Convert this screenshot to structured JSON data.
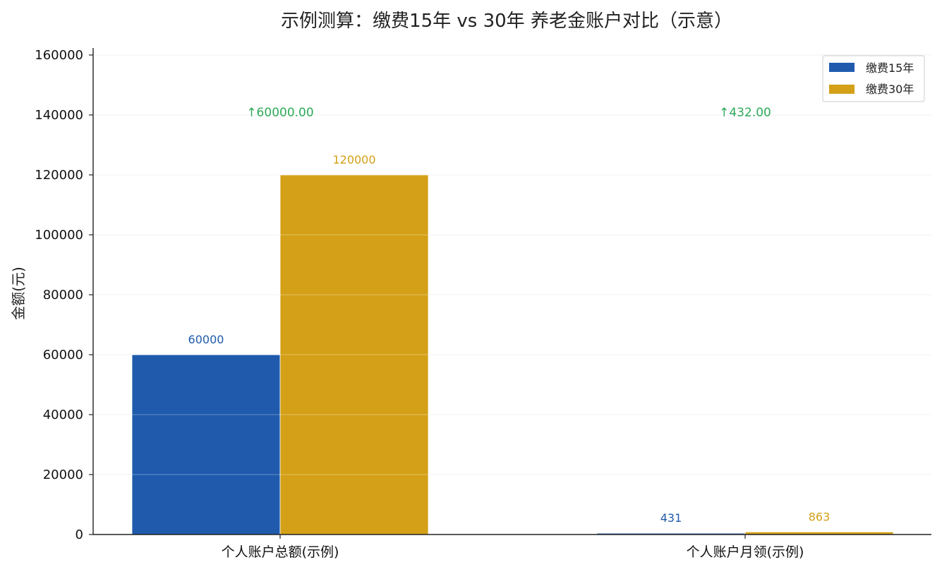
{
  "chart_data": {
    "type": "bar",
    "title": "示例测算：缴费15年 vs 30年 养老金账户对比（示意）",
    "xlabel": "",
    "ylabel": "金额(元)",
    "ylim": [
      0,
      160000
    ],
    "yticks": [
      0,
      20000,
      40000,
      60000,
      80000,
      100000,
      120000,
      140000,
      160000
    ],
    "grid": true,
    "legend_position": "top-right",
    "categories": [
      "个人账户总额(示例)",
      "个人账户月领(示例)"
    ],
    "series": [
      {
        "name": "缴费15年",
        "color": "#1f5aad",
        "values": [
          60000,
          431
        ],
        "labels": [
          "60000",
          "431"
        ]
      },
      {
        "name": "缴费30年",
        "color": "#d4a017",
        "values": [
          120000,
          863
        ],
        "labels": [
          "120000",
          "863"
        ]
      }
    ],
    "annotations": [
      {
        "category_index": 0,
        "text": "↑60000.00",
        "y": 140000,
        "color": "#2eaa5a"
      },
      {
        "category_index": 1,
        "text": "↑432.00",
        "y": 140000,
        "color": "#2eaa5a"
      }
    ]
  }
}
